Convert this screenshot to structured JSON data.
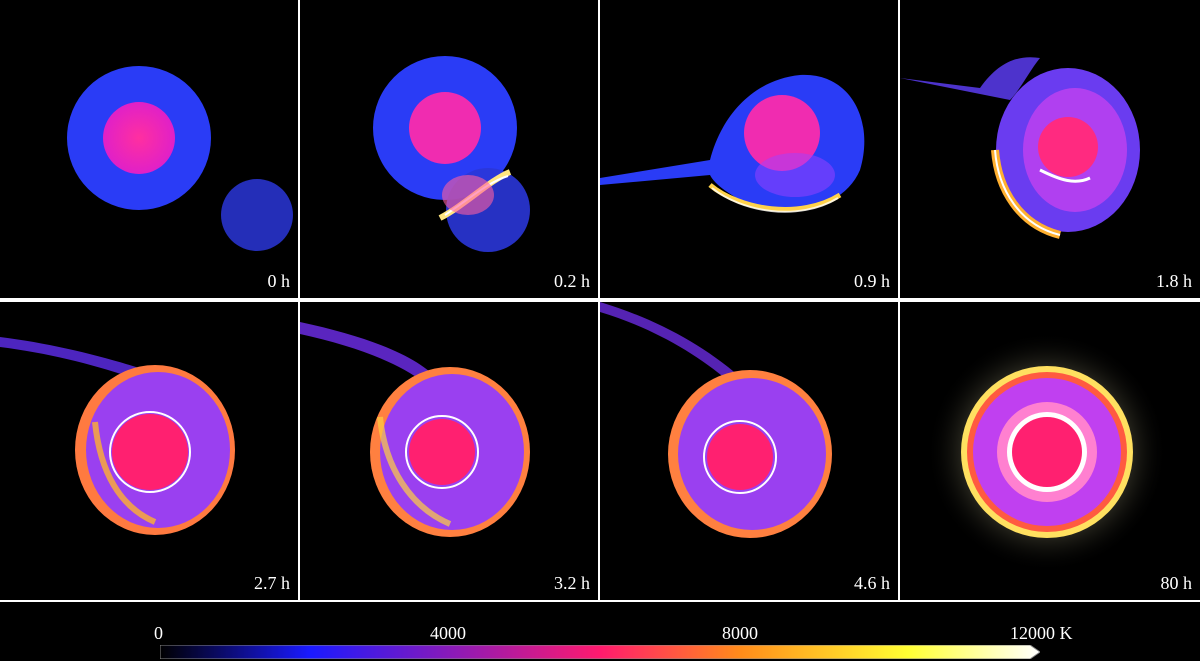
{
  "panels": [
    {
      "time_label": "0 h"
    },
    {
      "time_label": "0.2 h"
    },
    {
      "time_label": "0.9 h"
    },
    {
      "time_label": "1.8 h"
    },
    {
      "time_label": "2.7 h"
    },
    {
      "time_label": "3.2 h"
    },
    {
      "time_label": "4.6 h"
    },
    {
      "time_label": "80 h"
    }
  ],
  "colorbar": {
    "ticks": [
      "0",
      "4000",
      "8000",
      "12000 K"
    ],
    "colors": [
      "#000000",
      "#1a1aff",
      "#ff1a6e",
      "#ff8c1a",
      "#ffff33",
      "#ffffff"
    ]
  }
}
